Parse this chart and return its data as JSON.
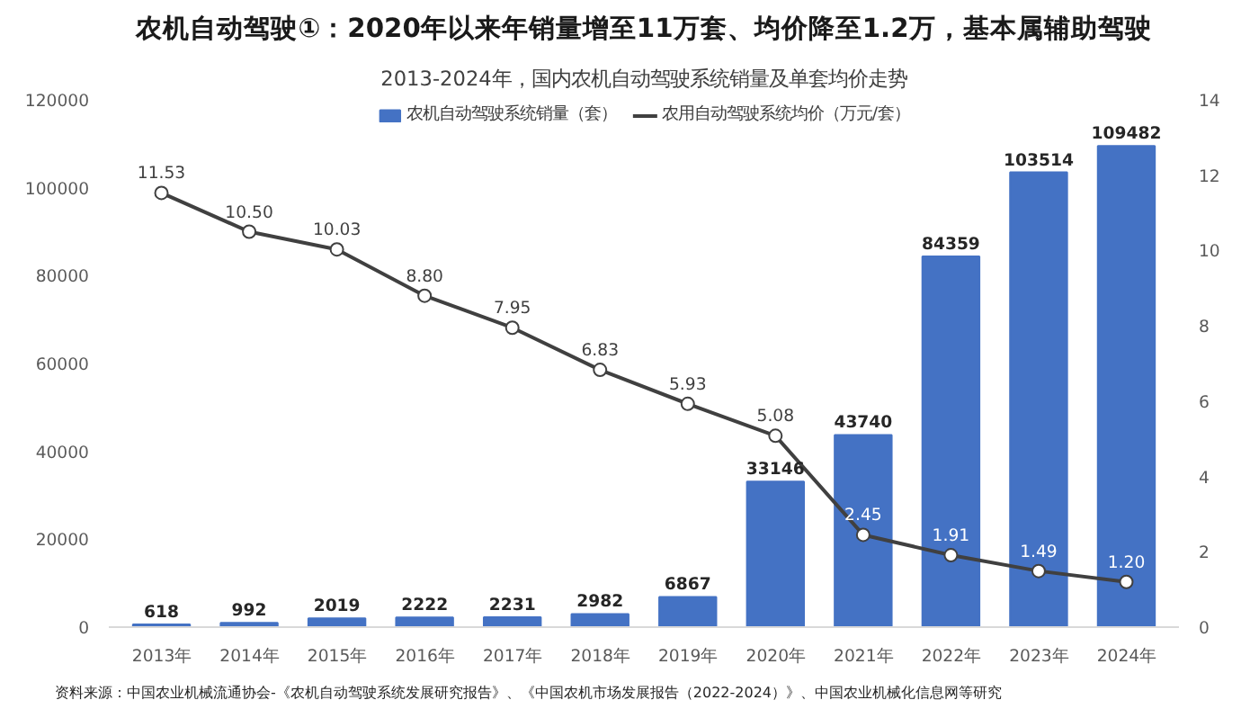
{
  "chart_data": {
    "type": "bar",
    "title": "农机自动驾驶①：2020年以来年销量增至11万套、均价降至1.2万，基本属辅助驾驶",
    "subtitle": "2013-2024年，国内农机自动驾驶系统销量及单套均价走势",
    "categories": [
      "2013年",
      "2014年",
      "2015年",
      "2016年",
      "2017年",
      "2018年",
      "2019年",
      "2020年",
      "2021年",
      "2022年",
      "2023年",
      "2024年"
    ],
    "series": [
      {
        "name": "农机自动驾驶系统销量（套）",
        "color": "#4472c4",
        "values": [
          618,
          992,
          2019,
          2222,
          2231,
          2982,
          6867,
          33146,
          43740,
          84359,
          103514,
          109482
        ],
        "value_labels": [
          "618",
          "992",
          "2019",
          "2222",
          "2231",
          "2982",
          "6867",
          "33146",
          "43740",
          "84359",
          "103514",
          "109482"
        ]
      },
      {
        "name": "农用自动驾驶系统均价（万元/套）",
        "type": "line",
        "axis": "y2",
        "color": "#404040",
        "marker": "circle",
        "values": [
          11.53,
          10.5,
          10.03,
          8.8,
          7.95,
          6.83,
          5.93,
          5.08,
          2.45,
          1.91,
          1.49,
          1.2
        ],
        "value_labels": [
          "11.53",
          "10.50",
          "10.03",
          "8.80",
          "7.95",
          "6.83",
          "5.93",
          "5.08",
          "2.45",
          "1.91",
          "1.49",
          "1.20"
        ]
      }
    ],
    "ylim": [
      0,
      120000
    ],
    "yticks": [
      0,
      20000,
      40000,
      60000,
      80000,
      100000,
      120000
    ],
    "y2lim": [
      0,
      14
    ],
    "y2ticks": [
      0,
      2,
      4,
      6,
      8,
      10,
      12,
      14
    ],
    "grid": false,
    "legend": "top",
    "annotations": [
      "资料来源：中国农业机械流通协会-《农机自动驾驶系统发展研究报告》、《中国农机市场发展报告（2022-2024）》、中国农业机械化信息网等研究"
    ]
  }
}
